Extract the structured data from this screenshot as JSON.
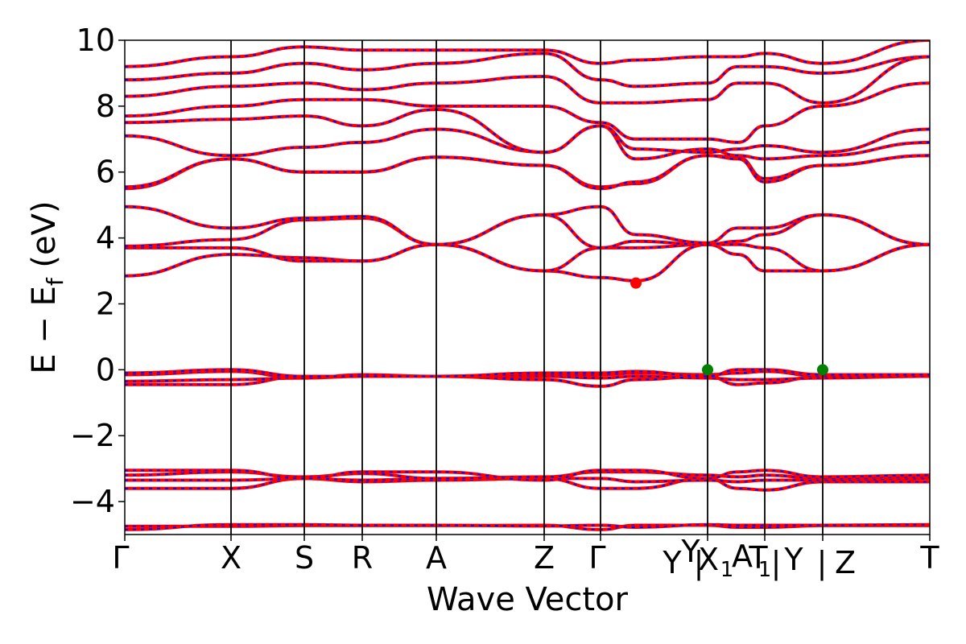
{
  "chart_data": {
    "type": "line",
    "xlabel": "Wave Vector",
    "ylabel": "E − E",
    "ylabel_sub": "f",
    "ylabel_unit": " (eV)",
    "ylim": [
      -5,
      10
    ],
    "yticks": [
      10,
      8,
      6,
      4,
      2,
      0,
      -2,
      -4
    ],
    "ytick_labels": [
      "10",
      "8",
      "6",
      "4",
      "2",
      "0",
      "−2",
      "−4"
    ],
    "xlim": [
      0,
      11.2
    ],
    "kpoints": [
      {
        "x": 0.0,
        "label": "Γ"
      },
      {
        "x": 1.12,
        "label": "X"
      },
      {
        "x": 1.89,
        "label": "S"
      },
      {
        "x": 2.5,
        "label": "R"
      },
      {
        "x": 3.28,
        "label": "A"
      },
      {
        "x": 4.4,
        "label": "Z"
      },
      {
        "x": 5.0,
        "label": "Γ"
      },
      {
        "x": 5.7,
        "label": "Y"
      },
      {
        "x": 6.13,
        "label": "Y"
      },
      {
        "x": 6.13,
        "label": "|"
      },
      {
        "x": 6.2,
        "label": "X"
      },
      {
        "x": 6.3,
        "label": "1"
      },
      {
        "x": 6.45,
        "label": "A"
      },
      {
        "x": 6.6,
        "label": "1"
      },
      {
        "x": 6.72,
        "label": "T"
      },
      {
        "x": 6.83,
        "label": "|"
      },
      {
        "x": 6.95,
        "label": "Y"
      },
      {
        "x": 7.33,
        "label": "|"
      },
      {
        "x": 7.65,
        "label": "Z"
      },
      {
        "x": 8.5,
        "label": "T"
      }
    ],
    "vlines": [
      1.12,
      1.89,
      2.5,
      3.28,
      4.4,
      5.0,
      6.13,
      6.73,
      7.33
    ],
    "colors": {
      "band": "#ff0000",
      "band_dash": "#0000ff",
      "cbm": "#ff0000",
      "vbm": "#008000"
    },
    "markers": [
      {
        "name": "CBM",
        "x": 5.4,
        "y": 2.63,
        "color": "#ff0000"
      },
      {
        "name": "VBM",
        "x": 6.13,
        "y": 0.0,
        "color": "#008000"
      },
      {
        "name": "VBM",
        "x": 7.33,
        "y": 0.0,
        "color": "#008000"
      }
    ],
    "grid": false,
    "bands": [
      [
        -4.75,
        -4.75,
        -4.73,
        -4.73,
        -4.73,
        -4.72,
        -4.85,
        -4.72,
        -4.72,
        -4.78,
        -4.78,
        -4.73,
        -4.73
      ],
      [
        -4.85,
        -4.7,
        -4.7,
        -4.72,
        -4.72,
        -4.74,
        -4.72,
        -4.78,
        -4.7,
        -4.72,
        -4.72,
        -4.72,
        -4.7
      ],
      [
        -3.6,
        -3.6,
        -3.3,
        -3.4,
        -3.35,
        -3.3,
        -3.6,
        -3.6,
        -3.3,
        -3.6,
        -3.65,
        -3.4,
        -3.4
      ],
      [
        -3.35,
        -3.35,
        -3.3,
        -3.35,
        -3.3,
        -3.3,
        -3.3,
        -3.4,
        -3.35,
        -3.4,
        -3.35,
        -3.35,
        -3.3
      ],
      [
        -3.2,
        -3.1,
        -3.25,
        -3.15,
        -3.3,
        -3.25,
        -3.1,
        -3.1,
        -3.2,
        -3.25,
        -3.2,
        -3.3,
        -3.25
      ],
      [
        -3.05,
        -3.05,
        -3.3,
        -3.1,
        -3.1,
        -3.35,
        -3.05,
        -3.05,
        -3.3,
        -3.1,
        -3.05,
        -3.25,
        -3.2
      ],
      [
        -0.45,
        -0.45,
        -0.2,
        -0.2,
        -0.2,
        -0.3,
        -0.5,
        -0.3,
        -0.2,
        -0.45,
        -0.4,
        -0.2,
        -0.2
      ],
      [
        -0.35,
        -0.3,
        -0.25,
        -0.2,
        -0.2,
        -0.2,
        -0.25,
        -0.2,
        -0.25,
        -0.3,
        -0.3,
        -0.25,
        -0.2
      ],
      [
        -0.15,
        -0.05,
        -0.25,
        -0.15,
        -0.2,
        -0.15,
        -0.15,
        -0.1,
        -0.15,
        -0.1,
        -0.05,
        -0.2,
        -0.2
      ],
      [
        -0.1,
        -0.0,
        -0.2,
        -0.2,
        -0.2,
        -0.1,
        -0.1,
        -0.05,
        -0.2,
        -0.0,
        0.0,
        -0.15,
        -0.15
      ],
      [
        2.85,
        3.5,
        3.4,
        3.3,
        3.8,
        3.0,
        2.8,
        2.7,
        3.8,
        3.5,
        3.0,
        3.0,
        3.8
      ],
      [
        3.7,
        3.7,
        3.3,
        3.3,
        3.8,
        3.0,
        3.7,
        3.7,
        3.8,
        3.8,
        3.7,
        3.0,
        3.8
      ],
      [
        3.75,
        3.95,
        4.55,
        4.6,
        3.8,
        4.7,
        3.7,
        3.9,
        3.8,
        3.9,
        4.1,
        4.7,
        3.8
      ],
      [
        4.95,
        4.3,
        4.6,
        4.65,
        3.8,
        4.7,
        4.95,
        4.1,
        3.85,
        4.3,
        4.3,
        4.7,
        3.8
      ],
      [
        5.5,
        6.4,
        6.0,
        6.0,
        6.45,
        6.2,
        5.55,
        5.65,
        6.5,
        6.45,
        5.8,
        6.2,
        6.5
      ],
      [
        5.55,
        6.4,
        6.0,
        6.0,
        6.45,
        6.2,
        5.5,
        5.7,
        6.5,
        6.4,
        5.7,
        6.2,
        6.5
      ],
      [
        7.1,
        6.5,
        6.75,
        6.9,
        7.3,
        6.6,
        7.4,
        6.4,
        6.7,
        6.5,
        6.4,
        6.5,
        6.9
      ],
      [
        7.5,
        7.6,
        7.7,
        7.4,
        7.9,
        6.6,
        7.4,
        6.7,
        6.6,
        6.7,
        6.8,
        6.6,
        7.3
      ],
      [
        7.7,
        8.0,
        8.2,
        8.2,
        8.0,
        8.0,
        7.5,
        7.0,
        7.0,
        6.9,
        7.4,
        8.0,
        8.7
      ],
      [
        8.3,
        8.6,
        8.7,
        8.5,
        8.7,
        8.9,
        8.1,
        8.1,
        8.2,
        8.7,
        8.7,
        8.1,
        9.5
      ],
      [
        8.8,
        9.0,
        9.3,
        9.1,
        9.3,
        9.6,
        8.8,
        8.6,
        8.7,
        9.2,
        9.2,
        9.0,
        9.5
      ],
      [
        9.2,
        9.5,
        9.8,
        9.7,
        9.7,
        9.7,
        9.3,
        9.4,
        9.5,
        9.5,
        9.6,
        9.3,
        10.0
      ]
    ]
  }
}
